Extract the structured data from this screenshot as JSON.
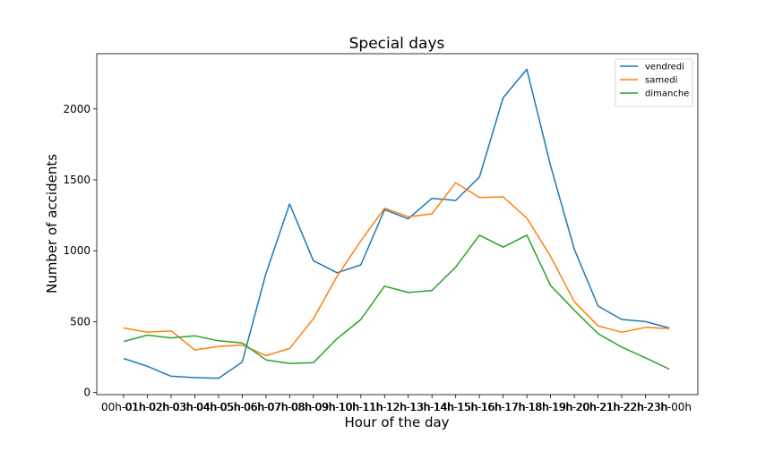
{
  "chart_data": {
    "type": "line",
    "title": "Special days",
    "xlabel": "Hour of the day",
    "ylabel": "Number of accidents",
    "categories": [
      "00h-01h",
      "01h-02h",
      "02h-03h",
      "03h-04h",
      "04h-05h",
      "05h-06h",
      "06h-07h",
      "07h-08h",
      "08h-09h",
      "09h-10h",
      "10h-11h",
      "11h-12h",
      "12h-13h",
      "13h-14h",
      "14h-15h",
      "15h-16h",
      "16h-17h",
      "17h-18h",
      "18h-19h",
      "19h-20h",
      "20h-21h",
      "21h-22h",
      "22h-23h",
      "23h-00h"
    ],
    "yticks": [
      0,
      500,
      1000,
      1500,
      2000
    ],
    "ylim": [
      -15,
      2390
    ],
    "grid": false,
    "legend_position": "top-right",
    "series": [
      {
        "name": "vendredi",
        "color": "#1f77b4",
        "values": [
          240,
          185,
          115,
          105,
          100,
          215,
          840,
          1330,
          930,
          845,
          900,
          1290,
          1225,
          1370,
          1355,
          1520,
          2080,
          2280,
          1600,
          1010,
          610,
          515,
          500,
          455
        ]
      },
      {
        "name": "samedi",
        "color": "#ff7f0e",
        "values": [
          455,
          425,
          435,
          300,
          325,
          335,
          260,
          310,
          520,
          820,
          1070,
          1300,
          1240,
          1260,
          1480,
          1375,
          1380,
          1230,
          960,
          640,
          470,
          425,
          460,
          450
        ]
      },
      {
        "name": "dimanche",
        "color": "#2ca02c",
        "values": [
          360,
          405,
          385,
          400,
          365,
          350,
          230,
          205,
          210,
          380,
          515,
          750,
          705,
          720,
          885,
          1110,
          1025,
          1110,
          755,
          580,
          415,
          320,
          245,
          165
        ]
      }
    ]
  }
}
